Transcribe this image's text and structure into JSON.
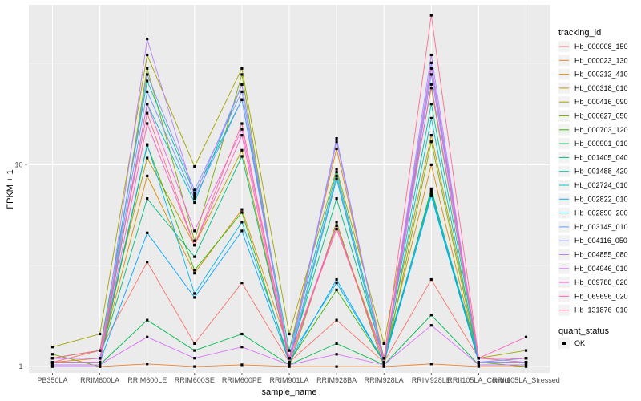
{
  "chart_data": {
    "type": "line",
    "xlabel": "sample_name",
    "ylabel": "FPKM + 1",
    "y_scale": "log10",
    "ylim": [
      0.93,
      62
    ],
    "y_ticks": [
      1,
      10
    ],
    "y_tick_labels": [
      "1 -",
      "10 -"
    ],
    "grid": true,
    "legend_position": "right",
    "categories": [
      "PB350LA",
      "RRIM600LA",
      "RRIM600LE",
      "RRIM600SE",
      "RRIM600PE",
      "RRIM901LA",
      "RRIM928BA",
      "RRIM928LA",
      "RRIM928LE",
      "RRII105LA_Control",
      "RRII105LA_Stressed"
    ],
    "tick_labels": [
      "PB350LA",
      "RRIM600LA",
      "RRIM600LE",
      "RRIM600SE",
      "RRIM600PE",
      "RRIM901LA",
      "RRIM928BA",
      "RRIM928LA",
      "RRIM928LE",
      "RRII105LA_Control",
      "RRII105LA_Stressed"
    ],
    "legend": {
      "title": "tracking_id",
      "point_title": "quant_status",
      "point_label": "OK"
    },
    "point_color": "#000000",
    "series": [
      {
        "name": "Hb_000008_150",
        "color": "#F8766D",
        "values": [
          1.05,
          1.2,
          3.3,
          1.3,
          2.6,
          1.05,
          1.7,
          1.05,
          2.7,
          1.1,
          1.05
        ]
      },
      {
        "name": "Hb_000023_130",
        "color": "#EA8331",
        "values": [
          1.0,
          1.0,
          1.03,
          1.0,
          1.02,
          1.0,
          1.0,
          1.0,
          1.03,
          1.0,
          1.0
        ]
      },
      {
        "name": "Hb_000212_410",
        "color": "#D89000",
        "values": [
          1.05,
          1.1,
          8.8,
          2.9,
          6.0,
          1.2,
          12.0,
          1.1,
          10.0,
          1.05,
          1.05
        ]
      },
      {
        "name": "Hb_000318_010",
        "color": "#C09B00",
        "values": [
          1.1,
          1.2,
          10.8,
          4.0,
          11.8,
          1.1,
          5.0,
          1.1,
          14.0,
          1.1,
          1.1
        ]
      },
      {
        "name": "Hb_000416_090",
        "color": "#A3A500",
        "values": [
          1.25,
          1.45,
          35.0,
          9.8,
          30.0,
          1.45,
          9.5,
          1.3,
          24.0,
          1.1,
          1.2
        ]
      },
      {
        "name": "Hb_000627_050",
        "color": "#7CAE00",
        "values": [
          1.15,
          1.0,
          30.0,
          4.2,
          28.0,
          1.0,
          5.2,
          1.0,
          13.0,
          1.05,
          1.0
        ]
      },
      {
        "name": "Hb_000703_120",
        "color": "#39B600",
        "values": [
          1.05,
          1.05,
          12.5,
          3.0,
          5.8,
          1.05,
          2.4,
          1.05,
          7.6,
          1.05,
          1.05
        ]
      },
      {
        "name": "Hb_000901_010",
        "color": "#00BB4E",
        "values": [
          1.02,
          1.02,
          1.7,
          1.2,
          1.45,
          1.02,
          1.3,
          1.02,
          1.8,
          1.02,
          1.02
        ]
      },
      {
        "name": "Hb_001405_040",
        "color": "#00BF7D",
        "values": [
          1.1,
          1.1,
          6.8,
          3.5,
          11.0,
          1.1,
          6.8,
          1.1,
          7.2,
          1.05,
          1.1
        ]
      },
      {
        "name": "Hb_001488_420",
        "color": "#00C1A3",
        "values": [
          1.1,
          1.2,
          26.0,
          7.2,
          21.0,
          1.2,
          9.2,
          1.1,
          20.0,
          1.1,
          1.1
        ]
      },
      {
        "name": "Hb_002724_010",
        "color": "#00BFC4",
        "values": [
          1.05,
          1.05,
          20.0,
          6.5,
          25.0,
          1.05,
          8.5,
          1.05,
          17.0,
          1.05,
          1.05
        ]
      },
      {
        "name": "Hb_002822_010",
        "color": "#00B8E7",
        "values": [
          1.1,
          1.1,
          12.6,
          2.3,
          5.2,
          1.1,
          2.6,
          1.05,
          7.4,
          1.1,
          1.1
        ]
      },
      {
        "name": "Hb_002890_200",
        "color": "#00A9FF",
        "values": [
          1.05,
          1.05,
          4.6,
          2.2,
          4.7,
          1.05,
          2.7,
          1.05,
          7.0,
          1.05,
          1.05
        ]
      },
      {
        "name": "Hb_003145_010",
        "color": "#619CFF",
        "values": [
          1.1,
          1.1,
          23.0,
          6.8,
          21.0,
          1.1,
          8.8,
          1.05,
          28.0,
          1.1,
          1.1
        ]
      },
      {
        "name": "Hb_004116_050",
        "color": "#8494FF",
        "values": [
          1.05,
          1.05,
          28.0,
          7.5,
          23.0,
          1.1,
          13.5,
          1.05,
          32.0,
          1.05,
          1.1
        ]
      },
      {
        "name": "Hb_004855_080",
        "color": "#B983FF",
        "values": [
          1.0,
          1.0,
          42.0,
          7.0,
          25.0,
          1.05,
          13.0,
          1.05,
          35.0,
          1.05,
          1.05
        ]
      },
      {
        "name": "Hb_004946_010",
        "color": "#DB72FB",
        "values": [
          1.02,
          1.02,
          1.4,
          1.1,
          1.25,
          1.02,
          1.15,
          1.02,
          1.6,
          1.02,
          1.02
        ]
      },
      {
        "name": "Hb_009788_020",
        "color": "#F564E3",
        "values": [
          1.1,
          1.1,
          20.0,
          4.7,
          15.0,
          1.1,
          5.0,
          1.05,
          25.0,
          1.1,
          1.1
        ]
      },
      {
        "name": "Hb_069696_020",
        "color": "#FF61C3",
        "values": [
          1.05,
          1.05,
          16.0,
          4.0,
          14.0,
          1.05,
          5.0,
          1.05,
          30.0,
          1.1,
          1.4
        ]
      },
      {
        "name": "Hb_131876_010",
        "color": "#FF6C91",
        "values": [
          1.1,
          1.2,
          18.0,
          4.0,
          16.0,
          1.1,
          4.8,
          1.1,
          55.0,
          1.1,
          1.1
        ]
      }
    ]
  }
}
